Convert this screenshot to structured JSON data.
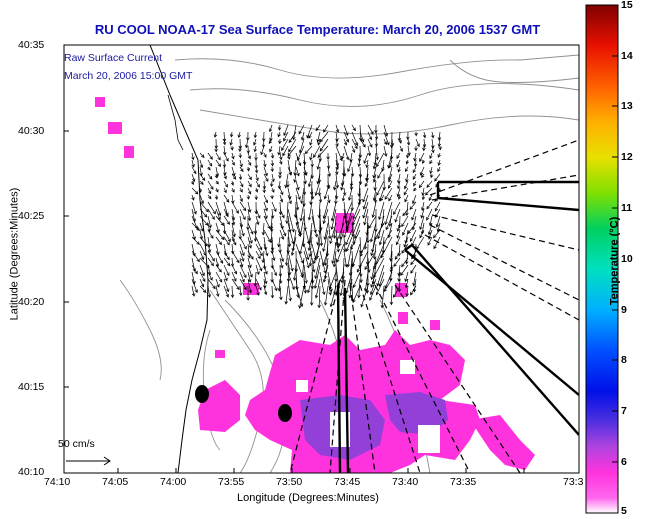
{
  "title": "RU COOL   NOAA-17  Sea Surface Temperature:  March 20, 2006 1537 GMT",
  "annotation": {
    "line1": "Raw Surface Current",
    "line2": "March 20, 2006 15:00 GMT"
  },
  "axes": {
    "xlabel": "Longitude (Degrees:Minutes)",
    "ylabel": "Latitude (Degrees:Minutes)",
    "x_ticks": [
      "74:10",
      "74:05",
      "74:00",
      "73:55",
      "73:50",
      "73:45",
      "73:40",
      "73:35",
      "73:3"
    ],
    "y_ticks": [
      "40:35",
      "40:30",
      "40:25",
      "40:20",
      "40:15",
      "40:10"
    ]
  },
  "colorbar": {
    "label": "Temperature (°C)",
    "ticks": [
      "15",
      "14",
      "13",
      "12",
      "11",
      "10",
      "9",
      "8",
      "7",
      "6",
      "5"
    ],
    "range": [
      5,
      15
    ]
  },
  "scale_arrow_label": "50 cm/s",
  "colors": {
    "title": "#1010b8",
    "sst_low": "#ff33dd",
    "sst_mid": "#8833dd",
    "land_line": "#000000",
    "bathymetry": "#909090"
  }
}
